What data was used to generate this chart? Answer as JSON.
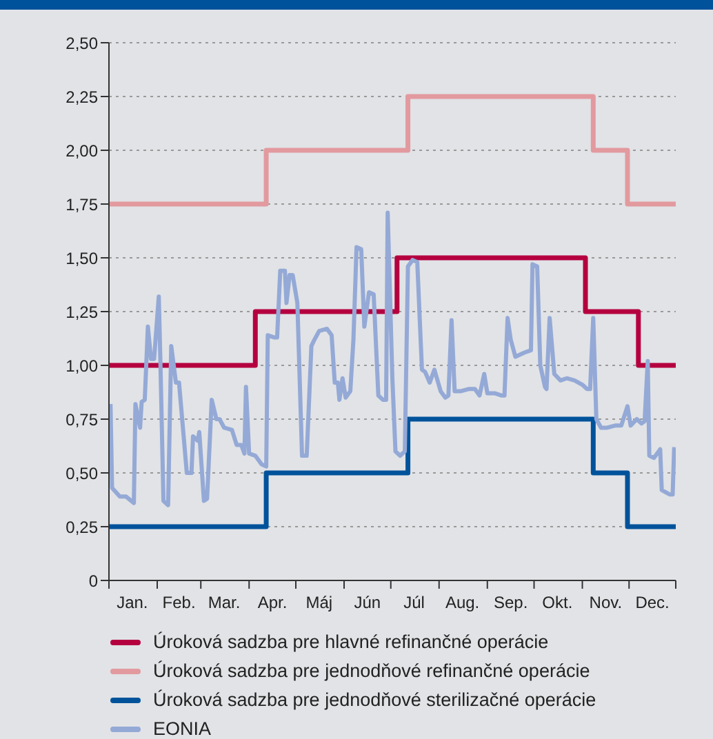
{
  "chart_data": {
    "type": "line",
    "xlim": [
      "--01-01",
      "--12-31"
    ],
    "xticks": [
      {
        "value": "--01-01",
        "label": null
      },
      {
        "value": "--01-16",
        "label": "Jan."
      },
      {
        "value": "--02-01",
        "label": null
      },
      {
        "value": "--02-15",
        "label": "Feb."
      },
      {
        "value": "--03-01",
        "label": null
      },
      {
        "value": "--03-16",
        "label": "Mar."
      },
      {
        "value": "--04-01",
        "label": null
      },
      {
        "value": "--04-16",
        "label": "Apr."
      },
      {
        "value": "--05-01",
        "label": null
      },
      {
        "value": "--05-16",
        "label": "Máj"
      },
      {
        "value": "--06-01",
        "label": null
      },
      {
        "value": "--06-16",
        "label": "Jún"
      },
      {
        "value": "--07-01",
        "label": null
      },
      {
        "value": "--07-16",
        "label": "Júl"
      },
      {
        "value": "--08-01",
        "label": null
      },
      {
        "value": "--08-16",
        "label": "Aug."
      },
      {
        "value": "--09-01",
        "label": null
      },
      {
        "value": "--09-16",
        "label": "Sep."
      },
      {
        "value": "--10-01",
        "label": null
      },
      {
        "value": "--10-16",
        "label": "Okt."
      },
      {
        "value": "--11-01",
        "label": null
      },
      {
        "value": "--11-16",
        "label": "Nov."
      },
      {
        "value": "--12-01",
        "label": null
      },
      {
        "value": "--12-16",
        "label": "Dec."
      },
      {
        "value": "--12-31",
        "label": null
      }
    ],
    "ylim": [
      0,
      2.5
    ],
    "yticks": [
      {
        "value": 0,
        "label": "0"
      },
      {
        "value": 0.25,
        "label": "0,25"
      },
      {
        "value": 0.5,
        "label": "0,50"
      },
      {
        "value": 0.75,
        "label": "0,75"
      },
      {
        "value": 1,
        "label": "1,00"
      },
      {
        "value": 1.25,
        "label": "1,25"
      },
      {
        "value": 1.5,
        "label": "1,50"
      },
      {
        "value": 1.75,
        "label": "1,75"
      },
      {
        "value": 2,
        "label": "2,00"
      },
      {
        "value": 2.25,
        "label": "2,25"
      },
      {
        "value": 2.5,
        "label": "2,50"
      }
    ],
    "grid": "y",
    "legend": "bottom",
    "series": [
      {
        "name": "Úroková sadzba pre hlavné refinančné operácie",
        "type": "step",
        "color": "#b5003f",
        "x": [
          "--01-01",
          "--04-05",
          "--07-05",
          "--11-03",
          "--12-07",
          "--12-31"
        ],
        "values": [
          1.0,
          1.25,
          1.5,
          1.25,
          1.0,
          1.0
        ]
      },
      {
        "name": "Úroková sadzba pre jednodňové refinančné operácie",
        "type": "step",
        "color": "#e29a9f",
        "x": [
          "--01-01",
          "--04-12",
          "--07-12",
          "--11-08",
          "--11-30",
          "--12-31"
        ],
        "values": [
          1.75,
          2.0,
          2.25,
          2.0,
          1.75,
          1.75
        ]
      },
      {
        "name": "Úroková sadzba pre jednodňové sterilizačné operácie",
        "type": "step",
        "color": "#00539b",
        "x": [
          "--01-01",
          "--04-12",
          "--07-12",
          "--11-08",
          "--11-30",
          "--12-31"
        ],
        "values": [
          0.25,
          0.5,
          0.75,
          0.5,
          0.25,
          0.25
        ]
      },
      {
        "name": "EONIA",
        "color": "#94a9d6",
        "x": [
          "--01-02",
          "--01-03",
          "--01-08",
          "--01-12",
          "--01-17",
          "--01-18",
          "--01-21",
          "--01-22",
          "--01-24",
          "--01-26",
          "--01-28",
          "--01-30",
          "--02-02",
          "--02-03",
          "--02-05",
          "--02-08",
          "--02-10",
          "--02-13",
          "--02-15",
          "--02-20",
          "--02-23",
          "--02-24",
          "--02-27",
          "--02-28",
          "--03-03",
          "--03-05",
          "--03-08",
          "--03-11",
          "--03-13",
          "--03-16",
          "--03-21",
          "--03-24",
          "--03-27",
          "--03-29",
          "--03-30",
          "--04-01",
          "--04-05",
          "--04-09",
          "--04-12",
          "--04-13",
          "--04-17",
          "--04-19",
          "--04-21",
          "--04-24",
          "--04-25",
          "--04-27",
          "--04-29",
          "--05-02",
          "--05-05",
          "--05-08",
          "--05-11",
          "--05-13",
          "--05-16",
          "--05-21",
          "--05-24",
          "--05-26",
          "--05-28",
          "--05-29",
          "--05-31",
          "--06-02",
          "--06-05",
          "--06-07",
          "--06-09",
          "--06-12",
          "--06-14",
          "--06-17",
          "--06-20",
          "--06-23",
          "--06-26",
          "--06-28",
          "--06-29",
          "--07-02",
          "--07-04",
          "--07-07",
          "--07-10",
          "--07-12",
          "--07-15",
          "--07-18",
          "--07-21",
          "--07-23",
          "--07-26",
          "--07-29",
          "--08-02",
          "--08-05",
          "--08-07",
          "--08-09",
          "--08-11",
          "--08-15",
          "--08-20",
          "--08-24",
          "--08-27",
          "--08-30",
          "--09-01",
          "--09-06",
          "--09-10",
          "--09-12",
          "--09-14",
          "--09-16",
          "--09-19",
          "--09-25",
          "--09-29",
          "--09-30",
          "--10-03",
          "--10-05",
          "--10-08",
          "--10-09",
          "--10-11",
          "--10-14",
          "--10-18",
          "--10-22",
          "--10-27",
          "--11-01",
          "--11-04",
          "--11-06",
          "--11-08",
          "--11-10",
          "--11-13",
          "--11-17",
          "--11-22",
          "--11-26",
          "--11-30",
          "--12-02",
          "--12-06",
          "--12-09",
          "--12-11",
          "--12-13",
          "--12-14",
          "--12-17",
          "--12-21",
          "--12-22",
          "--12-27",
          "--12-29",
          "--12-30"
        ],
        "values": [
          0.82,
          0.43,
          0.39,
          0.39,
          0.36,
          0.82,
          0.71,
          0.83,
          0.84,
          1.18,
          1.03,
          1.03,
          1.32,
          1.03,
          0.37,
          0.35,
          1.09,
          0.92,
          0.92,
          0.5,
          0.5,
          0.67,
          0.65,
          0.69,
          0.37,
          0.38,
          0.84,
          0.75,
          0.75,
          0.71,
          0.7,
          0.63,
          0.63,
          0.59,
          0.9,
          0.59,
          0.58,
          0.54,
          0.53,
          1.14,
          1.13,
          1.13,
          1.44,
          1.44,
          1.29,
          1.42,
          1.42,
          1.29,
          0.58,
          0.58,
          1.09,
          1.12,
          1.16,
          1.17,
          1.14,
          0.92,
          0.92,
          0.84,
          0.94,
          0.85,
          0.88,
          1.12,
          1.55,
          1.54,
          1.18,
          1.34,
          1.33,
          0.86,
          0.84,
          0.84,
          1.71,
          0.94,
          0.6,
          0.58,
          0.6,
          1.46,
          1.49,
          1.48,
          0.98,
          0.97,
          0.92,
          0.98,
          0.88,
          0.85,
          0.86,
          1.21,
          0.88,
          0.88,
          0.89,
          0.89,
          0.86,
          0.96,
          0.87,
          0.87,
          0.86,
          0.86,
          1.22,
          1.12,
          1.04,
          1.06,
          1.07,
          1.47,
          1.46,
          1.0,
          0.9,
          0.89,
          1.22,
          0.96,
          0.93,
          0.94,
          0.93,
          0.91,
          0.89,
          0.89,
          1.22,
          0.75,
          0.71,
          0.71,
          0.72,
          0.72,
          0.81,
          0.72,
          0.75,
          0.73,
          0.74,
          1.02,
          0.58,
          0.57,
          0.61,
          0.42,
          0.4,
          0.4,
          0.62
        ]
      }
    ]
  }
}
